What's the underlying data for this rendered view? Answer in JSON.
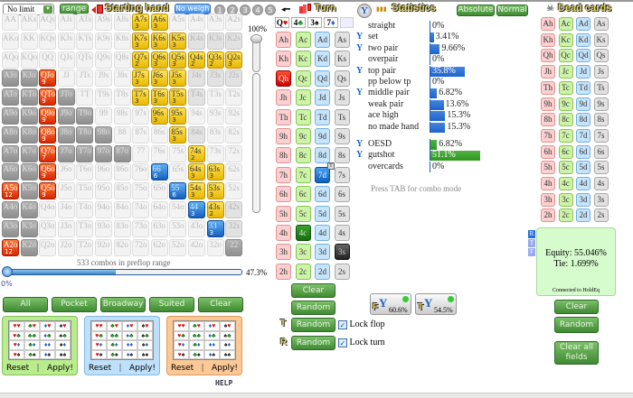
{
  "toolbar": {
    "game_select": "No limit",
    "range_button": "range",
    "starting_hand_title": "Starting hand",
    "weight_button": "No weight",
    "weight_slots": [
      "1",
      "2",
      "3",
      "4",
      "5"
    ]
  },
  "range_grid": [
    [
      [
        "AA",
        "n"
      ],
      [
        "AKs",
        "n"
      ],
      [
        "AQs",
        "n"
      ],
      [
        "AJs",
        "n"
      ],
      [
        "ATs",
        "n"
      ],
      [
        "A9s",
        "n"
      ],
      [
        "A8s",
        "n"
      ],
      [
        "A7s",
        "y",
        "3"
      ],
      [
        "A6s",
        "y",
        "3"
      ],
      [
        "A5s",
        "n"
      ],
      [
        "A4s",
        "n"
      ],
      [
        "A3s",
        "n"
      ],
      [
        "A2s",
        "n"
      ]
    ],
    [
      [
        "AKo",
        "n"
      ],
      [
        "KK",
        "n"
      ],
      [
        "KQs",
        "n"
      ],
      [
        "KJs",
        "n"
      ],
      [
        "KTs",
        "n"
      ],
      [
        "K9s",
        "n"
      ],
      [
        "K8s",
        "n"
      ],
      [
        "K7s",
        "y",
        "3"
      ],
      [
        "K6s",
        "y",
        "3"
      ],
      [
        "K5s",
        "y",
        "3"
      ],
      [
        "K4s",
        "gray"
      ],
      [
        "K3s",
        "gray"
      ],
      [
        "K2s",
        "gray"
      ]
    ],
    [
      [
        "AQo",
        "n"
      ],
      [
        "KQo",
        "n"
      ],
      [
        "QQ",
        "n"
      ],
      [
        "QJs",
        "n"
      ],
      [
        "QTs",
        "n"
      ],
      [
        "Q9s",
        "n"
      ],
      [
        "Q8s",
        "n"
      ],
      [
        "Q7s",
        "y",
        "2"
      ],
      [
        "Q6s",
        "y",
        "3"
      ],
      [
        "Q5s",
        "y",
        "3"
      ],
      [
        "Q4s",
        "y",
        "2"
      ],
      [
        "Q3s",
        "y",
        "2"
      ],
      [
        "Q2s",
        "y",
        "3"
      ]
    ],
    [
      [
        "AJo",
        "dark"
      ],
      [
        "KJo",
        "dark"
      ],
      [
        "QJo",
        "r",
        "9"
      ],
      [
        "JJ",
        "n"
      ],
      [
        "JTs",
        "n"
      ],
      [
        "J9s",
        "n"
      ],
      [
        "J8s",
        "n"
      ],
      [
        "J7s",
        "y",
        "3"
      ],
      [
        "J6s",
        "y",
        "3"
      ],
      [
        "J5s",
        "y",
        "3"
      ],
      [
        "J4s",
        "gray"
      ],
      [
        "J3s",
        "gray"
      ],
      [
        "J2s",
        "gray"
      ]
    ],
    [
      [
        "ATo",
        "dark"
      ],
      [
        "KTo",
        "dark"
      ],
      [
        "QTo",
        "r",
        "9"
      ],
      [
        "JTo",
        "dark"
      ],
      [
        "TT",
        "n"
      ],
      [
        "T9s",
        "n"
      ],
      [
        "T8s",
        "n"
      ],
      [
        "T7s",
        "y",
        "3"
      ],
      [
        "T6s",
        "y",
        "3"
      ],
      [
        "T5s",
        "y",
        "3"
      ],
      [
        "T4s",
        "gray"
      ],
      [
        "T3s",
        "n"
      ],
      [
        "T2s",
        "n"
      ]
    ],
    [
      [
        "A9o",
        "dark"
      ],
      [
        "K9o",
        "dark"
      ],
      [
        "Q9o",
        "r",
        "9"
      ],
      [
        "J9o",
        "dark"
      ],
      [
        "T9o",
        "dark"
      ],
      [
        "99",
        "n"
      ],
      [
        "98s",
        "n"
      ],
      [
        "97s",
        "n"
      ],
      [
        "96s",
        "y",
        "3"
      ],
      [
        "95s",
        "y",
        "3"
      ],
      [
        "94s",
        "n"
      ],
      [
        "93s",
        "n"
      ],
      [
        "92s",
        "n"
      ]
    ],
    [
      [
        "A8o",
        "dark"
      ],
      [
        "K8o",
        "dark"
      ],
      [
        "Q8o",
        "r",
        "9"
      ],
      [
        "J8o",
        "dark"
      ],
      [
        "T8o",
        "dark"
      ],
      [
        "98o",
        "dark"
      ],
      [
        "88",
        "n"
      ],
      [
        "87s",
        "n"
      ],
      [
        "86s",
        "n"
      ],
      [
        "85s",
        "y",
        "3"
      ],
      [
        "84s",
        "gray"
      ],
      [
        "83s",
        "n"
      ],
      [
        "82s",
        "n"
      ]
    ],
    [
      [
        "A7o",
        "dark"
      ],
      [
        "K7o",
        "dark"
      ],
      [
        "Q7o",
        "r",
        "7"
      ],
      [
        "J7o",
        "dark"
      ],
      [
        "T7o",
        "dark"
      ],
      [
        "97o",
        "dark"
      ],
      [
        "87o",
        "dark"
      ],
      [
        "77",
        "n"
      ],
      [
        "76s",
        "n"
      ],
      [
        "75s",
        "n"
      ],
      [
        "74s",
        "y",
        "2"
      ],
      [
        "73s",
        "n"
      ],
      [
        "72s",
        "n"
      ]
    ],
    [
      [
        "A6o",
        "dark"
      ],
      [
        "K6o",
        "dark"
      ],
      [
        "Q6o",
        "r",
        "9"
      ],
      [
        "J6o",
        "n"
      ],
      [
        "T6o",
        "n"
      ],
      [
        "96o",
        "n"
      ],
      [
        "86o",
        "n"
      ],
      [
        "76o",
        "n"
      ],
      [
        "66",
        "b",
        "6"
      ],
      [
        "65s",
        "n"
      ],
      [
        "64s",
        "y",
        "3"
      ],
      [
        "63s",
        "y",
        "3"
      ],
      [
        "62s",
        "n"
      ]
    ],
    [
      [
        "A5o",
        "r",
        "12"
      ],
      [
        "K5o",
        "dark"
      ],
      [
        "Q5o",
        "r",
        "9"
      ],
      [
        "J5o",
        "n"
      ],
      [
        "T5o",
        "n"
      ],
      [
        "95o",
        "n"
      ],
      [
        "85o",
        "n"
      ],
      [
        "75o",
        "n"
      ],
      [
        "65o",
        "n"
      ],
      [
        "55",
        "b",
        "6"
      ],
      [
        "54s",
        "y",
        "3"
      ],
      [
        "53s",
        "y",
        "3"
      ],
      [
        "52s",
        "n"
      ]
    ],
    [
      [
        "A4o",
        "dark"
      ],
      [
        "K4o",
        "dark"
      ],
      [
        "Q4o",
        "n"
      ],
      [
        "J4o",
        "n"
      ],
      [
        "T4o",
        "n"
      ],
      [
        "94o",
        "n"
      ],
      [
        "84o",
        "n"
      ],
      [
        "74o",
        "n"
      ],
      [
        "64o",
        "n"
      ],
      [
        "54o",
        "n"
      ],
      [
        "44",
        "b",
        "3"
      ],
      [
        "43s",
        "y",
        "2"
      ],
      [
        "42s",
        "gray"
      ]
    ],
    [
      [
        "A3o",
        "dark"
      ],
      [
        "K3o",
        "dark"
      ],
      [
        "Q3o",
        "n"
      ],
      [
        "J3o",
        "n"
      ],
      [
        "T3o",
        "n"
      ],
      [
        "93o",
        "n"
      ],
      [
        "83o",
        "n"
      ],
      [
        "73o",
        "n"
      ],
      [
        "63o",
        "n"
      ],
      [
        "53o",
        "n"
      ],
      [
        "43o",
        "n"
      ],
      [
        "33",
        "b",
        "3"
      ],
      [
        "32s",
        "gray"
      ]
    ],
    [
      [
        "A2o",
        "r",
        "12"
      ],
      [
        "K2o",
        "dark"
      ],
      [
        "Q2o",
        "n"
      ],
      [
        "J2o",
        "n"
      ],
      [
        "T2o",
        "n"
      ],
      [
        "92o",
        "n"
      ],
      [
        "82o",
        "n"
      ],
      [
        "72o",
        "n"
      ],
      [
        "62o",
        "n"
      ],
      [
        "52o",
        "n"
      ],
      [
        "42o",
        "n"
      ],
      [
        "32o",
        "n"
      ],
      [
        "22",
        "dark"
      ]
    ]
  ],
  "range": {
    "weight_slider_label": "100%",
    "combos_text": "533 combos in preflop range",
    "range_percent": 47.3,
    "range_percent_label": "47.3%",
    "min_label": "0%"
  },
  "quick_buttons": [
    "All",
    "Pocket",
    "Broadway",
    "Suited",
    "Clear"
  ],
  "suit_matrix": [
    [
      "♥♥",
      "♣♥",
      "♦♥",
      "♠♥"
    ],
    [
      "♥♣",
      "♣♣",
      "♦♣",
      "♠♣"
    ],
    [
      "♥♦",
      "♣♦",
      "♦♦",
      "♠♦"
    ],
    [
      "♥♠",
      "♣♠",
      "♦♠",
      "♠♠"
    ]
  ],
  "suit_panels": [
    {
      "color": "#b8ec8c",
      "border": "#86c060",
      "reset": "Reset",
      "sep": "|",
      "apply": "Apply!"
    },
    {
      "color": "#bfe0fa",
      "border": "#82b8e4",
      "reset": "Reset",
      "sep": "|",
      "apply": "Apply!"
    },
    {
      "color": "#fbc896",
      "border": "#e09a5a",
      "reset": "Reset",
      "sep": "|",
      "apply": "Apply!"
    }
  ],
  "help_label": "HELP",
  "board": {
    "title": "Turn",
    "cards": [
      {
        "rank": "Q",
        "suit": "♥",
        "color": "#d00"
      },
      {
        "rank": "4",
        "suit": "♣",
        "color": "#1a8a1a"
      },
      {
        "rank": "3",
        "suit": "♠",
        "color": "#111"
      },
      {
        "rank": "7",
        "suit": "♦",
        "color": "#1a5fd0"
      }
    ],
    "ranks": [
      "A",
      "K",
      "Q",
      "J",
      "T",
      "9",
      "8",
      "7",
      "6",
      "5",
      "4",
      "3",
      "2"
    ],
    "suits": [
      "h",
      "c",
      "d",
      "s"
    ],
    "selected": {
      "Qh": "selh",
      "7d": "seld",
      "4c": "selc",
      "3s": "sels"
    },
    "turn_badge": "T",
    "clear_label": "Clear",
    "random_label": "Random",
    "turn_random_label": "Random",
    "river_random_label": "Random",
    "turn_marker": "T",
    "river_marker": "R",
    "lock_flop": "Lock flop",
    "lock_turn": "Lock turn",
    "lock_flop_checked": true,
    "lock_turn_checked": true
  },
  "statistics": {
    "title": "Statistics",
    "absolute_label": "Absolute",
    "normal_label": "Normal",
    "made": [
      {
        "label": "straight",
        "value": 0,
        "text": "0%",
        "filter": false
      },
      {
        "label": "set",
        "value": 3.41,
        "text": "3.41%",
        "filter": true
      },
      {
        "label": "two pair",
        "value": 9.66,
        "text": "9.66%",
        "filter": true
      },
      {
        "label": "overpair",
        "value": 0,
        "text": "0%",
        "filter": false
      },
      {
        "label": "top pair",
        "value": 35.8,
        "text": "35.8%",
        "filter": true
      },
      {
        "label": "pp below tp",
        "value": 0,
        "text": "0%",
        "filter": false
      },
      {
        "label": "middle pair",
        "value": 6.82,
        "text": "6.82%",
        "filter": true
      },
      {
        "label": "weak pair",
        "value": 13.6,
        "text": "13.6%",
        "filter": false
      },
      {
        "label": "ace high",
        "value": 15.3,
        "text": "15.3%",
        "filter": false
      },
      {
        "label": "no made hand",
        "value": 15.3,
        "text": "15.3%",
        "filter": false
      }
    ],
    "draws": [
      {
        "label": "OESD",
        "value": 6.82,
        "text": "6.82%",
        "filter": true
      },
      {
        "label": "gutshot",
        "value": 51.1,
        "text": "51.1%",
        "filter": true
      },
      {
        "label": "overcards",
        "value": 0,
        "text": "0%",
        "filter": false
      }
    ],
    "made_color": "#1a64d0",
    "draw_color": "#2a9a1a",
    "tab_hint": "Press TAB for combo mode",
    "flop_filter": {
      "letter": "F",
      "text": "60.6%"
    },
    "turn_filter": {
      "letter": "T",
      "text": "54.5%"
    }
  },
  "dead_cards": {
    "title": "Dead cards"
  },
  "equity": {
    "equity_text": "Equity: 55.046%",
    "tie_text": "Tie: 1.699%",
    "status": "Connected to HoldEq",
    "street_tags": [
      "R",
      "T",
      "F"
    ],
    "clear_label": "Clear",
    "random_label": "Random",
    "clear_all_label": "Clear all fields"
  }
}
